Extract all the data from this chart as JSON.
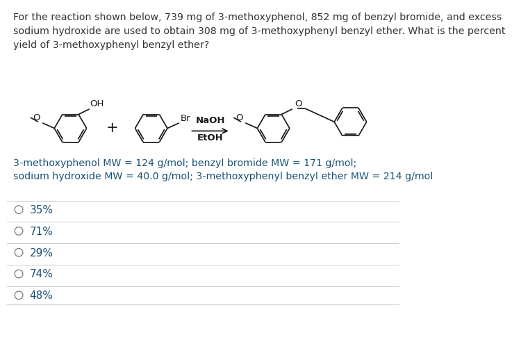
{
  "title_text": "For the reaction shown below, 739 mg of 3-methoxyphenol, 852 mg of benzyl bromide, and excess\nsodium hydroxide are used to obtain 308 mg of 3-methoxyphenyl benzyl ether. What is the percent\nyield of 3-methoxyphenyl benzyl ether?",
  "mw_line1": "3-methoxyphenol MW = 124 g/mol; benzyl bromide MW = 171 g/mol;",
  "mw_line2": "sodium hydroxide MW = 40.0 g/mol; 3-methoxyphenyl benzyl ether MW = 214 g/mol",
  "choices": [
    "35%",
    "71%",
    "29%",
    "74%",
    "48%"
  ],
  "reagent1": "NaOH",
  "reagent2": "EtOH",
  "bg_color": "#ffffff",
  "text_color": "#333333",
  "mw_text_color": "#1a5276",
  "line_color": "#cccccc",
  "choice_text_color": "#1a5276",
  "title_fontsize": 10.2,
  "mw_fontsize": 10.2,
  "choice_fontsize": 11.0,
  "struct_color": "#1a1a1a"
}
